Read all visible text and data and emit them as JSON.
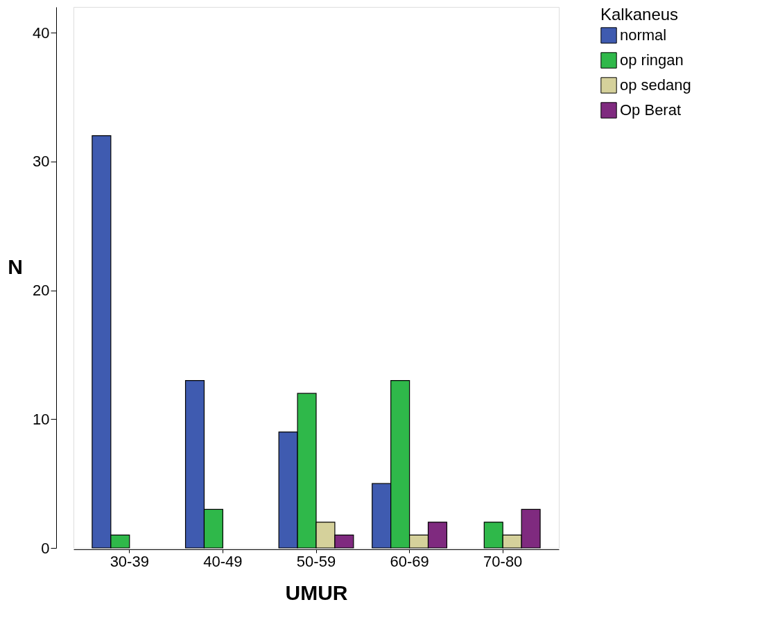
{
  "chart_data": {
    "type": "bar",
    "xlabel": "UMUR",
    "ylabel": "N",
    "legend_title": "Kalkaneus",
    "categories": [
      "30-39",
      "40-49",
      "50-59",
      "60-69",
      "70-80"
    ],
    "series": [
      {
        "name": "normal",
        "color": "#3f5bb0",
        "values": [
          32,
          13,
          9,
          5,
          null
        ]
      },
      {
        "name": "op ringan",
        "color": "#2fb84a",
        "values": [
          1,
          3,
          12,
          13,
          2
        ]
      },
      {
        "name": "op sedang",
        "color": "#d5d19b",
        "values": [
          null,
          null,
          2,
          1,
          1
        ]
      },
      {
        "name": "Op Berat",
        "color": "#7f2a7f",
        "values": [
          null,
          null,
          1,
          2,
          3
        ]
      }
    ],
    "ylim": [
      0,
      42
    ],
    "yticks": [
      0,
      10,
      20,
      30,
      40
    ],
    "grid": false,
    "legend": "top right"
  }
}
